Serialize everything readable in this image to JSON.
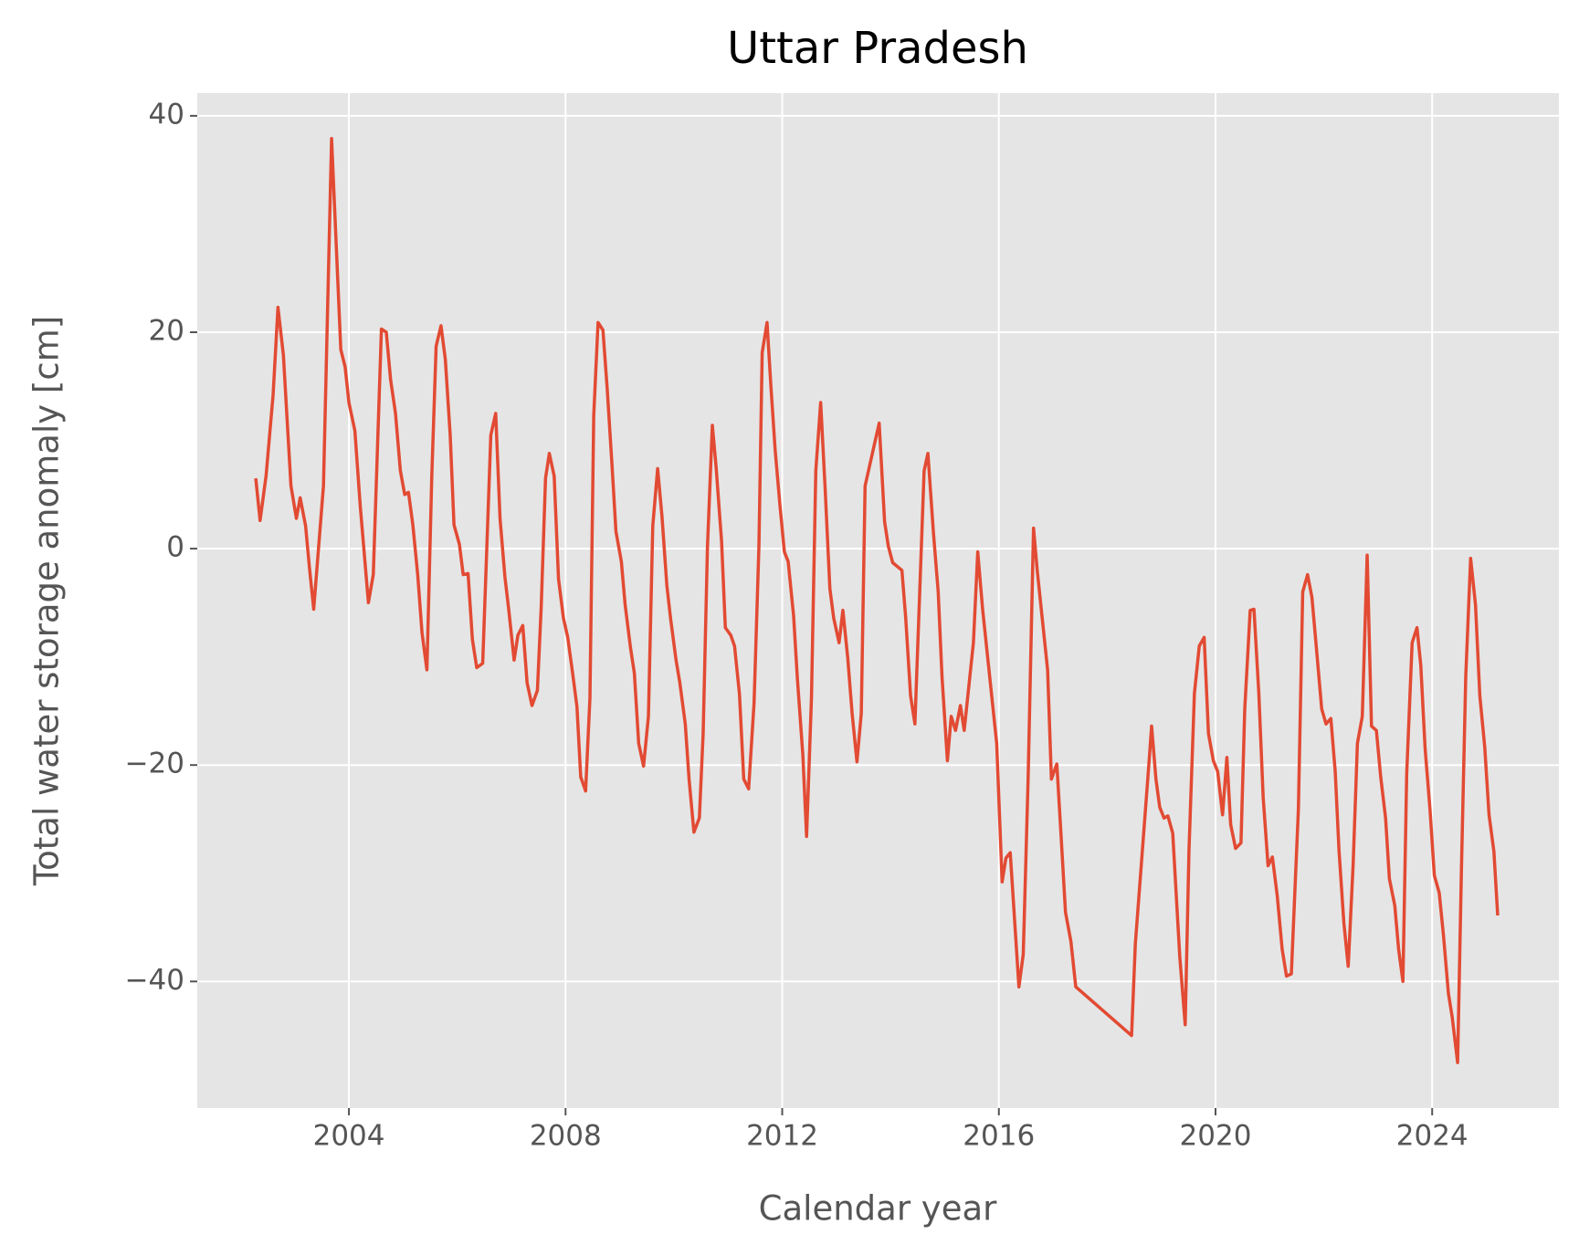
{
  "chart_data": {
    "type": "line",
    "title": "Uttar Pradesh",
    "xlabel": "Calendar year",
    "ylabel": "Total water storage anomaly [cm]",
    "x": [
      2002.28,
      2002.36,
      2002.47,
      2002.6,
      2002.69,
      2002.79,
      2002.93,
      2003.03,
      2003.1,
      2003.2,
      2003.27,
      2003.35,
      2003.53,
      2003.68,
      2003.85,
      2003.93,
      2004.0,
      2004.11,
      2004.21,
      2004.36,
      2004.45,
      2004.6,
      2004.69,
      2004.77,
      2004.86,
      2004.95,
      2005.03,
      2005.1,
      2005.18,
      2005.27,
      2005.35,
      2005.44,
      2005.53,
      2005.61,
      2005.7,
      2005.78,
      2005.87,
      2005.94,
      2006.04,
      2006.11,
      2006.2,
      2006.28,
      2006.36,
      2006.47,
      2006.62,
      2006.71,
      2006.79,
      2006.88,
      2006.95,
      2007.05,
      2007.12,
      2007.21,
      2007.29,
      2007.38,
      2007.48,
      2007.55,
      2007.63,
      2007.7,
      2007.79,
      2007.87,
      2007.96,
      2008.04,
      2008.13,
      2008.21,
      2008.28,
      2008.37,
      2008.45,
      2008.52,
      2008.6,
      2008.69,
      2008.77,
      2008.86,
      2008.93,
      2009.03,
      2009.1,
      2009.2,
      2009.27,
      2009.35,
      2009.44,
      2009.53,
      2009.61,
      2009.7,
      2009.78,
      2009.87,
      2009.94,
      2010.04,
      2010.11,
      2010.21,
      2010.28,
      2010.37,
      2010.47,
      2010.54,
      2010.62,
      2010.71,
      2010.78,
      2010.88,
      2010.95,
      2011.05,
      2011.12,
      2011.21,
      2011.29,
      2011.38,
      2011.48,
      2011.57,
      2011.63,
      2011.72,
      2011.79,
      2011.87,
      2011.96,
      2012.04,
      2012.11,
      2012.21,
      2012.28,
      2012.38,
      2012.45,
      2012.54,
      2012.62,
      2012.71,
      2012.79,
      2012.88,
      2012.95,
      2013.05,
      2013.12,
      2013.21,
      2013.29,
      2013.38,
      2013.46,
      2013.53,
      2013.79,
      2013.89,
      2013.96,
      2014.04,
      2014.21,
      2014.28,
      2014.37,
      2014.45,
      2014.62,
      2014.69,
      2014.79,
      2014.88,
      2014.95,
      2015.05,
      2015.12,
      2015.2,
      2015.29,
      2015.36,
      2015.53,
      2015.61,
      2015.7,
      2015.96,
      2016.06,
      2016.13,
      2016.21,
      2016.37,
      2016.45,
      2016.54,
      2016.64,
      2016.71,
      2016.9,
      2016.97,
      2017.07,
      2017.14,
      2017.23,
      2017.33,
      2017.42,
      2018.45,
      2018.52,
      2018.77,
      2018.82,
      2018.9,
      2018.97,
      2019.05,
      2019.12,
      2019.21,
      2019.34,
      2019.44,
      2019.51,
      2019.61,
      2019.7,
      2019.79,
      2019.87,
      2019.96,
      2020.04,
      2020.13,
      2020.21,
      2020.28,
      2020.37,
      2020.47,
      2020.54,
      2020.64,
      2020.71,
      2020.8,
      2020.88,
      2020.97,
      2021.05,
      2021.14,
      2021.23,
      2021.31,
      2021.4,
      2021.53,
      2021.61,
      2021.7,
      2021.78,
      2021.87,
      2021.96,
      2022.04,
      2022.13,
      2022.21,
      2022.28,
      2022.37,
      2022.45,
      2022.54,
      2022.62,
      2022.71,
      2022.8,
      2022.88,
      2022.97,
      2023.05,
      2023.14,
      2023.21,
      2023.31,
      2023.38,
      2023.46,
      2023.53,
      2023.63,
      2023.72,
      2023.79,
      2023.87,
      2023.96,
      2024.04,
      2024.13,
      2024.21,
      2024.3,
      2024.37,
      2024.47,
      2024.54,
      2024.62,
      2024.71,
      2024.8,
      2024.88,
      2024.97,
      2025.05,
      2025.14,
      2025.21
    ],
    "series": [
      {
        "color": "#e24a33",
        "values": [
          6.5,
          2.6,
          6.7,
          14.2,
          22.3,
          17.9,
          5.8,
          2.8,
          4.7,
          2.1,
          -1.7,
          -5.6,
          5.8,
          37.9,
          18.4,
          16.8,
          13.5,
          10.9,
          3.9,
          -5,
          -2.4,
          20.3,
          20,
          15.6,
          12.5,
          7.2,
          5,
          5.2,
          2.2,
          -2.4,
          -7.8,
          -11.2,
          6.7,
          18.7,
          20.6,
          17.5,
          10.5,
          2.2,
          0.4,
          -2.4,
          -2.3,
          -8.4,
          -11,
          -10.6,
          10.5,
          12.5,
          2.8,
          -2.6,
          -5.6,
          -10.3,
          -8,
          -7.1,
          -12.4,
          -14.5,
          -13.1,
          -5.4,
          6.5,
          8.8,
          6.7,
          -2.8,
          -6.4,
          -8.2,
          -11.5,
          -14.6,
          -21.1,
          -22.4,
          -13.8,
          12.3,
          20.9,
          20.2,
          14.7,
          7.5,
          1.6,
          -1.2,
          -5.2,
          -9.2,
          -11.5,
          -18,
          -20.1,
          -15.5,
          2.1,
          7.4,
          3,
          -3.4,
          -6.5,
          -10.3,
          -12.4,
          -16.2,
          -21.3,
          -26.2,
          -24.9,
          -17.1,
          0.2,
          11.4,
          7.5,
          0.7,
          -7.3,
          -8,
          -9,
          -13.4,
          -21.3,
          -22.2,
          -14.3,
          0.2,
          18.1,
          20.9,
          15.1,
          9.1,
          3.9,
          -0.3,
          -1.2,
          -6.2,
          -12,
          -19,
          -26.6,
          -13.8,
          7.2,
          13.5,
          5.8,
          -3.7,
          -6.4,
          -8.7,
          -5.7,
          -10.1,
          -15.2,
          -19.7,
          -15.2,
          5.8,
          11.6,
          2.5,
          0.2,
          -1.3,
          -2,
          -6.4,
          -13.6,
          -16.2,
          7.2,
          8.8,
          1.6,
          -4,
          -11.8,
          -19.6,
          -15.5,
          -16.8,
          -14.5,
          -16.8,
          -8.7,
          -0.3,
          -5.6,
          -18,
          -30.8,
          -28.6,
          -28.1,
          -40.5,
          -37.5,
          -21.3,
          1.9,
          -2.1,
          -11.2,
          -21.3,
          -19.9,
          -25.8,
          -33.6,
          -36.3,
          -40.5,
          -45,
          -36.5,
          -19.9,
          -16.4,
          -21.3,
          -23.9,
          -24.9,
          -24.7,
          -26.3,
          -37.7,
          -44,
          -27.9,
          -13.4,
          -9,
          -8.2,
          -17.1,
          -19.6,
          -20.6,
          -24.6,
          -19.3,
          -25.5,
          -27.7,
          -27.2,
          -14.8,
          -5.7,
          -5.6,
          -13.4,
          -23,
          -29.3,
          -28.5,
          -32.1,
          -37,
          -39.5,
          -39.3,
          -24.1,
          -4,
          -2.4,
          -4.5,
          -9.6,
          -14.8,
          -16.2,
          -15.7,
          -20.6,
          -27.9,
          -34.6,
          -38.6,
          -29.3,
          -18,
          -15.5,
          -0.6,
          -16.4,
          -16.8,
          -21.1,
          -24.9,
          -30.5,
          -33,
          -37,
          -40,
          -20.8,
          -8.7,
          -7.3,
          -10.8,
          -18.5,
          -24.1,
          -30.2,
          -31.8,
          -35.8,
          -41.1,
          -43.3,
          -47.5,
          -29.7,
          -11.8,
          -0.9,
          -5.2,
          -13.6,
          -18.3,
          -24.6,
          -28,
          -33.9
        ]
      }
    ],
    "xlim": [
      2001.2,
      2026.34
    ],
    "xticks": [
      2004,
      2008,
      2012,
      2016,
      2020,
      2024
    ],
    "ylim": [
      -51.7,
      42.1
    ],
    "yticks": [
      {
        "value": -40,
        "label": "−40"
      },
      {
        "value": -20,
        "label": "−20"
      },
      0,
      20,
      40
    ],
    "grid": true
  }
}
